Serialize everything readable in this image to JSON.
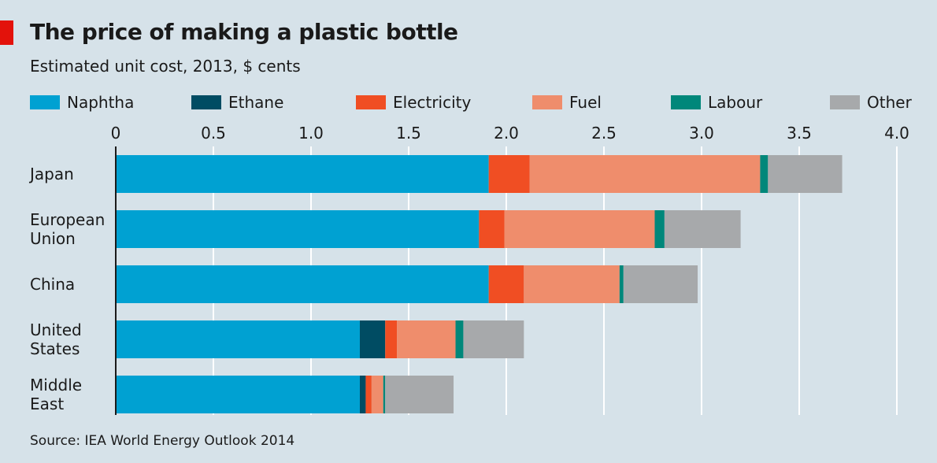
{
  "header": {
    "title": "The price of making a plastic bottle",
    "subtitle": "Estimated unit cost, 2013, $ cents"
  },
  "source": "Source: IEA World Energy Outlook 2014",
  "colors": {
    "Naphtha": "#00a1d2",
    "Ethane": "#004c63",
    "Electricity": "#f04e23",
    "Fuel": "#ef8d6c",
    "Labour": "#00877a",
    "Other": "#a7a9ab",
    "grid": "#ffffff",
    "axis": "#1a1a1a",
    "accent": "#e3120b"
  },
  "chart_data": {
    "type": "bar",
    "orientation": "horizontal",
    "stacked": true,
    "title": "The price of making a plastic bottle",
    "subtitle": "Estimated unit cost, 2013, $ cents",
    "xlim": [
      0,
      4.0
    ],
    "ticks": [
      "0",
      "0.5",
      "1.0",
      "1.5",
      "2.0",
      "2.5",
      "3.0",
      "3.5",
      "4.0"
    ],
    "tick_values": [
      0,
      0.5,
      1.0,
      1.5,
      2.0,
      2.5,
      3.0,
      3.5,
      4.0
    ],
    "grid": true,
    "legend_position": "top",
    "categories": [
      [
        "Japan"
      ],
      [
        "European",
        "Union"
      ],
      [
        "China"
      ],
      [
        "United",
        "States"
      ],
      [
        "Middle",
        "East"
      ]
    ],
    "series": [
      {
        "name": "Naphtha",
        "values": [
          1.91,
          1.86,
          1.91,
          1.25,
          1.25
        ]
      },
      {
        "name": "Ethane",
        "values": [
          0,
          0,
          0,
          0.13,
          0.03
        ]
      },
      {
        "name": "Electricity",
        "values": [
          0.21,
          0.13,
          0.18,
          0.06,
          0.03
        ]
      },
      {
        "name": "Fuel",
        "values": [
          1.18,
          0.77,
          0.49,
          0.3,
          0.06
        ]
      },
      {
        "name": "Labour",
        "values": [
          0.04,
          0.05,
          0.02,
          0.04,
          0.01
        ]
      },
      {
        "name": "Other",
        "values": [
          0.38,
          0.39,
          0.38,
          0.31,
          0.35
        ]
      }
    ]
  }
}
